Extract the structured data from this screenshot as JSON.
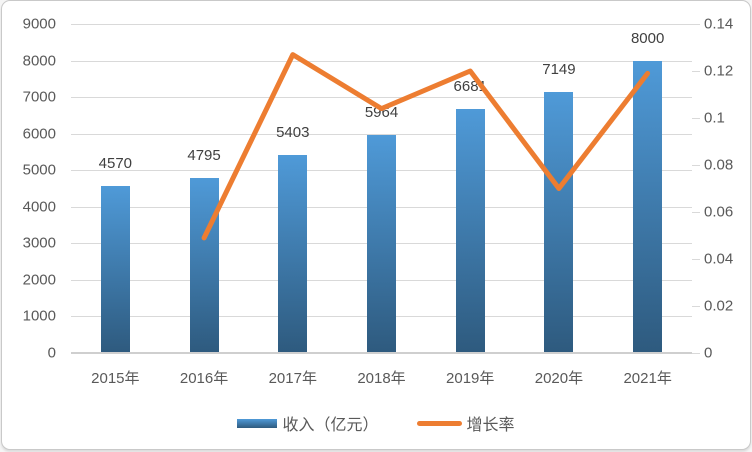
{
  "chart_data": {
    "type": "combo",
    "title": "",
    "categories": [
      "2015年",
      "2016年",
      "2017年",
      "2018年",
      "2019年",
      "2020年",
      "2021年"
    ],
    "series": [
      {
        "name": "收入（亿元）",
        "type": "bar",
        "axis": "left",
        "values": [
          4570,
          4795,
          5403,
          5964,
          6681,
          7149,
          8000
        ],
        "data_labels": [
          "4570",
          "4795",
          "5403",
          "5964",
          "6681",
          "7149",
          "8000"
        ],
        "color_top": "#4f9ad8",
        "color_bottom": "#2e5a7e"
      },
      {
        "name": "增长率",
        "type": "line",
        "axis": "right",
        "values": [
          null,
          0.049,
          0.127,
          0.104,
          0.12,
          0.07,
          0.119
        ],
        "color": "#ED7D31"
      }
    ],
    "axes": {
      "left": {
        "min": 0,
        "max": 9000,
        "step": 1000,
        "tick_labels": [
          "0",
          "1000",
          "2000",
          "3000",
          "4000",
          "5000",
          "6000",
          "7000",
          "8000",
          "9000"
        ]
      },
      "right": {
        "min": 0,
        "max": 0.14,
        "step": 0.02,
        "tick_labels": [
          "0",
          "0.02",
          "0.04",
          "0.06",
          "0.08",
          "0.1",
          "0.12",
          "0.14"
        ]
      }
    },
    "grid": true,
    "legend_position": "bottom"
  },
  "colors": {
    "grid": "#d9d9d9",
    "axis_text": "#595959",
    "data_label_text": "#404040",
    "bar_gradient_top": "#4f9ad8",
    "bar_gradient_bottom": "#2e5a7e",
    "line": "#ED7D31",
    "card_border": "#c9c9c9",
    "background": "#ffffff"
  }
}
